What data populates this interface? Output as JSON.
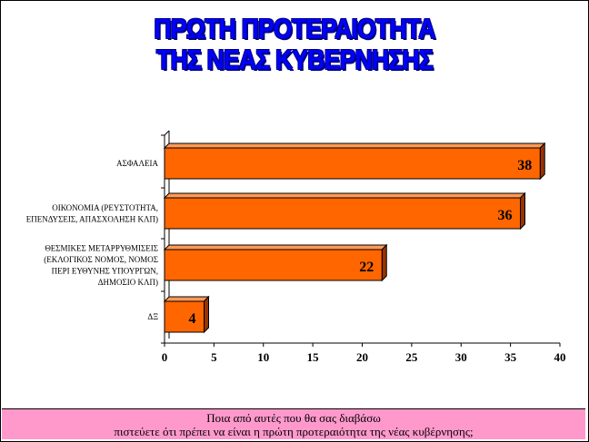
{
  "title": {
    "line1": "ΠΡΩΤΗ ΠΡΟΤΕΡΑΙΟΤΗΤΑ",
    "line2": "ΤΗΣ ΝΕΑΣ ΚΥΒΕΡΝΗΣΗΣ"
  },
  "question": {
    "line1": "Ποια από αυτές που θα σας διαβάσω",
    "line2": "πιστεύετε ότι πρέπει να είναι η πρώτη προτεραιότητα της νέας κυβέρνησης;"
  },
  "colors": {
    "bar_front": "#ff6600",
    "bar_top": "#ff9955",
    "bar_side": "#993300",
    "title": "#0000ff",
    "footer_bg": "#ff99cc"
  },
  "chart_data": {
    "type": "bar",
    "orientation": "horizontal",
    "three_d": true,
    "categories": [
      [
        "ΑΣΦΑΛΕΙΑ"
      ],
      [
        "ΟΙΚΟΝΟΜΙΑ (ΡΕΥΣΤΟΤΗΤΑ,",
        "ΕΠΕΝΔΥΣΕΙΣ, ΑΠΑΣΧΟΛΗΣΗ ΚΛΠ)"
      ],
      [
        "ΘΕΣΜΙΚΕΣ ΜΕΤΑΡΡΥΘΜΙΣΕΙΣ",
        "(ΕΚΛΟΓΙΚΟΣ ΝΟΜΟΣ, ΝΟΜΟΣ",
        "ΠΕΡΙ ΕΥΘΥΝΗΣ ΥΠΟΥΡΓΩΝ,",
        "ΔΗΜΟΣΙΟ ΚΛΠ)"
      ],
      [
        "ΔΞ"
      ]
    ],
    "values": [
      38,
      36,
      22,
      4
    ],
    "data_labels": [
      "38",
      "36",
      "22",
      "4"
    ],
    "xlim": [
      0,
      40
    ],
    "x_ticks": [
      0,
      5,
      10,
      15,
      20,
      25,
      30,
      35,
      40
    ],
    "grid": false,
    "legend": "none"
  }
}
